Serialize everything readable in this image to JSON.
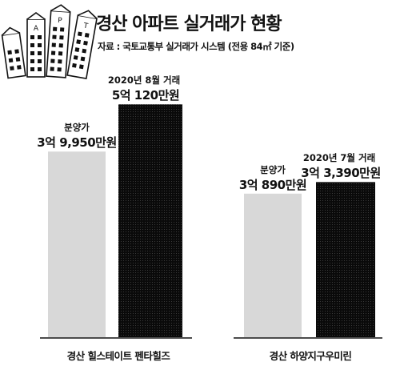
{
  "header": {
    "title": "경산 아파트 실거래가 현황",
    "source": "자료 : 국토교통부 실거래가 시스템 (전용 84㎡ 기준)",
    "logo_text": "APT"
  },
  "chart_data": {
    "type": "bar",
    "title": "경산 아파트 실거래가 현황",
    "categories": [
      "경산 힐스테이트 펜타힐즈",
      "경산 하양지구우미린"
    ],
    "series": [
      {
        "name": "분양가",
        "values": [
          39950,
          30890
        ]
      },
      {
        "name": "실거래가",
        "values": [
          50120,
          33390
        ]
      }
    ],
    "unit": "만원",
    "ylim": [
      0,
      55000
    ],
    "colors": {
      "분양가": "#d8d8d8",
      "실거래가": "#111111"
    },
    "groups": [
      {
        "category": "경산 힐스테이트 펜타힐즈",
        "sale_label": "분양가",
        "sale_value_text": "3억 9,950만원",
        "trade_date": "2020년 8월 거래",
        "trade_value_text": "5억 120만원"
      },
      {
        "category": "경산 하양지구우미린",
        "sale_label": "분양가",
        "sale_value_text": "3억 890만원",
        "trade_date": "2020년 7월 거래",
        "trade_value_text": "3억 3,390만원"
      }
    ],
    "legend": "none",
    "grid": false
  }
}
